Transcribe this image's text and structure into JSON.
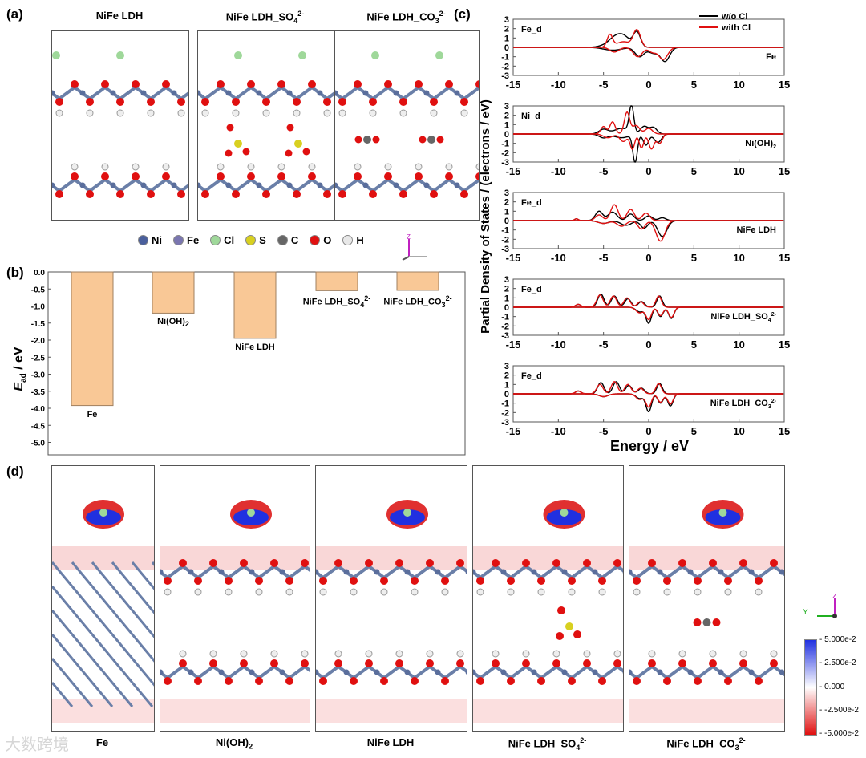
{
  "panel_labels": [
    "(a)",
    "(b)",
    "(c)",
    "(d)"
  ],
  "panel_a": {
    "titles": [
      "NiFe LDH",
      "NiFe LDH_SO",
      "NiFe LDH_CO"
    ],
    "title_subs": [
      "",
      "4",
      "3"
    ],
    "title_sups": [
      "",
      "2-",
      "2-"
    ],
    "legend": [
      {
        "label": "Ni",
        "color": "#4a5f9c"
      },
      {
        "label": "Fe",
        "color": "#7a76b0"
      },
      {
        "label": "Cl",
        "color": "#9fd89a"
      },
      {
        "label": "S",
        "color": "#d8d020"
      },
      {
        "label": "C",
        "color": "#666666"
      },
      {
        "label": "O",
        "color": "#e01010"
      },
      {
        "label": "H",
        "color": "#e8e8e8"
      }
    ]
  },
  "chart_data": [
    {
      "type": "bar",
      "title": "",
      "ylabel": "E",
      "ylabel_sub": "ad",
      "ylabel_unit": " / eV",
      "categories": [
        "Fe",
        "Ni(OH)",
        "NiFe LDH",
        "NiFe LDH_SO",
        "NiFe LDH_CO"
      ],
      "category_subs": [
        "",
        "2",
        "",
        "4",
        "3"
      ],
      "category_sups": [
        "",
        "",
        "",
        "2-",
        "2-"
      ],
      "values": [
        -3.92,
        -1.21,
        -1.95,
        -0.55,
        -0.54
      ],
      "ylim": [
        -5.3,
        0
      ],
      "yticks": [
        "0.0",
        "-0.5",
        "-1.0",
        "-1.5",
        "-2.0",
        "-2.5",
        "-3.0",
        "-3.5",
        "-4.0",
        "-4.5",
        "-5.0"
      ],
      "bar_color": "#f9c896"
    },
    {
      "type": "line",
      "xlabel": "Energy / eV",
      "ylabel": "Partial Density of States / (electrons / eV)",
      "xlim": [
        -15,
        15
      ],
      "ylim": [
        -3,
        3
      ],
      "xticks": [
        "-15",
        "-10",
        "-5",
        "0",
        "5",
        "10",
        "15"
      ],
      "yticks": [
        "3",
        "2",
        "1",
        "0",
        "-1",
        "-2",
        "-3"
      ],
      "legend": [
        {
          "name": "w/o Cl",
          "color": "#000000"
        },
        {
          "name": "with Cl",
          "color": "#e01010"
        }
      ],
      "subplots": [
        {
          "orbital": "Fe_d",
          "system": "Fe",
          "system_sub": "",
          "system_sup": "",
          "wo_up": [
            [
              -4.5,
              0.3,
              0.8
            ],
            [
              -2.8,
              1.2,
              0.7
            ],
            [
              -1.3,
              1.6,
              0.4
            ],
            [
              -3.8,
              0.6,
              0.6
            ]
          ],
          "wo_dn": [
            [
              -4,
              -0.3,
              1
            ],
            [
              -1,
              -1.0,
              0.5
            ],
            [
              0.5,
              -0.6,
              0.5
            ],
            [
              1.8,
              -1.5,
              0.5
            ]
          ],
          "w_up": [
            [
              -4.3,
              1.3,
              0.3
            ],
            [
              -2.8,
              0.6,
              0.8
            ],
            [
              -1.3,
              1.8,
              0.4
            ]
          ],
          "w_dn": [
            [
              -3.8,
              -0.5,
              0.5
            ],
            [
              -1.2,
              -1.0,
              0.5
            ],
            [
              0.4,
              -0.5,
              0.4
            ],
            [
              1.6,
              -1.3,
              0.5
            ]
          ]
        },
        {
          "orbital": "Ni_d",
          "system": "Ni(OH)",
          "system_sub": "2",
          "system_sup": "",
          "wo_up": [
            [
              -5,
              0.5,
              0.5
            ],
            [
              -3,
              0.6,
              0.8
            ],
            [
              -1.9,
              2.9,
              0.25
            ],
            [
              -0.5,
              0.8,
              0.4
            ],
            [
              0.5,
              0.7,
              0.4
            ]
          ],
          "wo_dn": [
            [
              -5,
              -0.4,
              0.5
            ],
            [
              -3,
              -0.4,
              0.8
            ],
            [
              -1.5,
              -3,
              0.25
            ],
            [
              -0.3,
              -1.2,
              0.3
            ],
            [
              1,
              -0.9,
              0.4
            ]
          ],
          "w_up": [
            [
              -5,
              0.8,
              0.3
            ],
            [
              -4,
              1.3,
              0.3
            ],
            [
              -2.4,
              2.3,
              0.3
            ],
            [
              -1.4,
              0.9,
              0.4
            ],
            [
              0,
              0.6,
              0.4
            ]
          ],
          "w_dn": [
            [
              -4.5,
              -0.4,
              0.5
            ],
            [
              -2.8,
              -0.8,
              0.4
            ],
            [
              -1.8,
              -1.6,
              0.25
            ],
            [
              -0.8,
              -1.5,
              0.25
            ],
            [
              0.3,
              -1.6,
              0.3
            ],
            [
              1.2,
              -1.0,
              0.3
            ]
          ]
        },
        {
          "orbital": "Fe_d",
          "system": "NiFe LDH",
          "system_sub": "",
          "system_sup": "",
          "wo_up": [
            [
              -8,
              0.2,
              0.2
            ],
            [
              -5.5,
              1.0,
              0.4
            ],
            [
              -4,
              0.9,
              0.5
            ],
            [
              -2,
              0.7,
              0.4
            ],
            [
              0,
              0.5,
              0.4
            ],
            [
              1.5,
              0.3,
              0.4
            ]
          ],
          "wo_dn": [
            [
              -5,
              -0.3,
              0.6
            ],
            [
              -2.5,
              -0.5,
              0.6
            ],
            [
              -0.5,
              -0.8,
              0.4
            ],
            [
              1.5,
              -1.7,
              0.5
            ]
          ],
          "w_up": [
            [
              -8,
              0.2,
              0.2
            ],
            [
              -5.5,
              0.6,
              0.4
            ],
            [
              -3.8,
              1.7,
              0.4
            ],
            [
              -2,
              1.2,
              0.4
            ],
            [
              -0.3,
              0.8,
              0.4
            ]
          ],
          "w_dn": [
            [
              -5,
              -0.3,
              0.6
            ],
            [
              -3,
              -0.6,
              0.5
            ],
            [
              -0.8,
              -0.9,
              0.4
            ],
            [
              1.3,
              -2.2,
              0.5
            ]
          ]
        },
        {
          "orbital": "Fe_d",
          "system": "NiFe LDH_SO",
          "system_sub": "4",
          "system_sup": "2-",
          "wo_up": [
            [
              -7.8,
              0.3,
              0.3
            ],
            [
              -5.3,
              1.4,
              0.35
            ],
            [
              -3.8,
              1.2,
              0.35
            ],
            [
              -2.3,
              0.9,
              0.35
            ],
            [
              -0.8,
              0.6,
              0.35
            ],
            [
              1.2,
              1.2,
              0.3
            ]
          ],
          "wo_dn": [
            [
              -1,
              -0.5,
              0.4
            ],
            [
              0,
              -1.7,
              0.3
            ],
            [
              1.3,
              -1.0,
              0.3
            ],
            [
              2.5,
              -1.2,
              0.3
            ]
          ],
          "w_up": [
            [
              -7.8,
              0.3,
              0.3
            ],
            [
              -5.4,
              1.3,
              0.35
            ],
            [
              -3.9,
              1.2,
              0.35
            ],
            [
              -2.4,
              1.0,
              0.35
            ],
            [
              -0.9,
              0.6,
              0.35
            ],
            [
              1.1,
              1.2,
              0.3
            ]
          ],
          "w_dn": [
            [
              -1,
              -0.6,
              0.4
            ],
            [
              0,
              -1.3,
              0.3
            ],
            [
              1.3,
              -0.9,
              0.3
            ],
            [
              2.5,
              -1.1,
              0.3
            ]
          ]
        },
        {
          "orbital": "Fe_d",
          "system": "NiFe LDH_CO",
          "system_sub": "3",
          "system_sup": "2-",
          "wo_up": [
            [
              -7.8,
              0.3,
              0.3
            ],
            [
              -5.3,
              1.2,
              0.35
            ],
            [
              -3.6,
              1.3,
              0.35
            ],
            [
              -2.2,
              0.9,
              0.35
            ],
            [
              -0.8,
              0.6,
              0.35
            ],
            [
              1.2,
              1.1,
              0.3
            ]
          ],
          "wo_dn": [
            [
              -5,
              -0.3,
              0.5
            ],
            [
              -1,
              -0.5,
              0.4
            ],
            [
              0,
              -1.9,
              0.3
            ],
            [
              1.3,
              -1.0,
              0.3
            ],
            [
              2.4,
              -1.3,
              0.3
            ]
          ],
          "w_up": [
            [
              -7.8,
              0.3,
              0.3
            ],
            [
              -5.4,
              1.0,
              0.35
            ],
            [
              -3.8,
              1.3,
              0.35
            ],
            [
              -2.3,
              1.0,
              0.35
            ],
            [
              -0.9,
              0.6,
              0.35
            ],
            [
              1.1,
              1.1,
              0.3
            ]
          ],
          "w_dn": [
            [
              -5,
              -0.3,
              0.5
            ],
            [
              -1,
              -0.6,
              0.4
            ],
            [
              0,
              -1.4,
              0.3
            ],
            [
              1.3,
              -0.9,
              0.3
            ],
            [
              2.4,
              -1.1,
              0.3
            ]
          ]
        }
      ]
    }
  ],
  "panel_d": {
    "labels": [
      "Fe",
      "Ni(OH)",
      "NiFe LDH",
      "NiFe LDH_SO",
      "NiFe LDH_CO"
    ],
    "label_subs": [
      "",
      "2",
      "",
      "4",
      "3"
    ],
    "label_sups": [
      "",
      "",
      "",
      "2-",
      "2-"
    ],
    "colorbar": {
      "ticks": [
        "5.000e-2",
        "2.500e-2",
        "0.000",
        "-2.500e-2",
        "-5.000e-2"
      ],
      "colors": [
        "#2030e0",
        "#ffffff",
        "#e01010"
      ]
    },
    "axes": {
      "z": "Z",
      "y": "Y"
    }
  },
  "watermark": "大数跨境"
}
